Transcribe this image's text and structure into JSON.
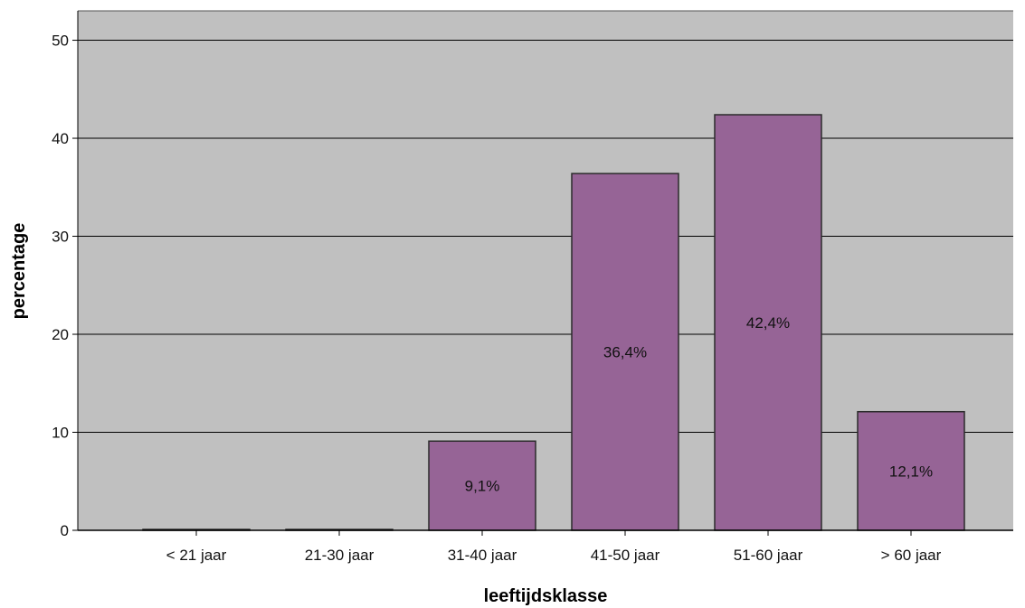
{
  "chart_data": {
    "type": "bar",
    "title": "",
    "xlabel": "leeftijdsklasse",
    "ylabel": "percentage",
    "categories": [
      "< 21 jaar",
      "21-30 jaar",
      "31-40 jaar",
      "41-50 jaar",
      "51-60 jaar",
      "> 60 jaar"
    ],
    "values": [
      0,
      0,
      9.1,
      36.4,
      42.4,
      12.1
    ],
    "data_labels": [
      "",
      "",
      "9,1%",
      "36,4%",
      "42,4%",
      "12,1%"
    ],
    "ylim": [
      0,
      53
    ],
    "yticks": [
      0,
      10,
      20,
      30,
      40,
      50
    ],
    "ytick_labels": [
      "0",
      "10",
      "20",
      "30",
      "40",
      "50"
    ],
    "grid": true,
    "colors": {
      "plot_background": "#c0c0c0",
      "bar_fill": "#966496",
      "bar_stroke": "#2b2b2b",
      "gridline": "#000000"
    }
  }
}
